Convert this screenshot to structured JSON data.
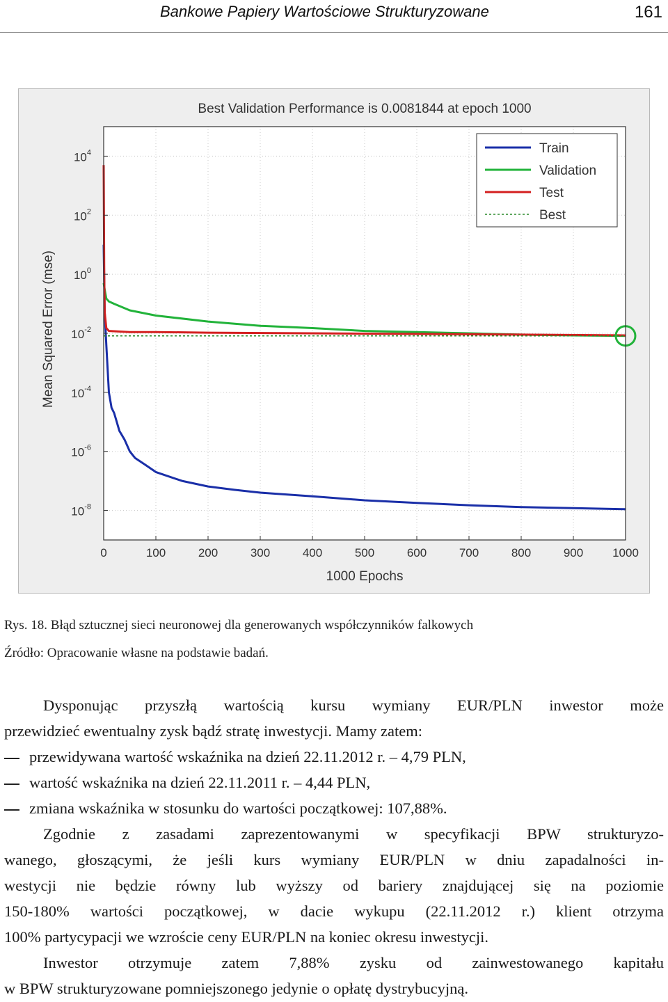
{
  "header": {
    "running_title": "Bankowe Papiery Wartościowe Strukturyzowane",
    "page_number": "161"
  },
  "figure": {
    "caption": "Rys. 18. Błąd sztucznej sieci neuronowej dla generowanych współczynników falkowych",
    "source": "Źródło:  Opracowanie własne na podstawie badań."
  },
  "chart_data": {
    "type": "line",
    "title": "Best Validation Performance is 0.0081844 at epoch 1000",
    "xlabel": "1000 Epochs",
    "ylabel": "Mean Squared Error  (mse)",
    "xlim": [
      0,
      1000
    ],
    "ylim_log10": [
      -9,
      5
    ],
    "y_scale": "log",
    "x_ticks": [
      "0",
      "100",
      "200",
      "300",
      "400",
      "500",
      "600",
      "700",
      "800",
      "900",
      "1000"
    ],
    "y_ticks": [
      {
        "base": "10",
        "exp": "4",
        "log10": 4
      },
      {
        "base": "10",
        "exp": "2",
        "log10": 2
      },
      {
        "base": "10",
        "exp": "0",
        "log10": 0
      },
      {
        "base": "10",
        "exp": "-2",
        "log10": -2
      },
      {
        "base": "10",
        "exp": "-4",
        "log10": -4
      },
      {
        "base": "10",
        "exp": "-6",
        "log10": -6
      },
      {
        "base": "10",
        "exp": "-8",
        "log10": -8
      }
    ],
    "grid": true,
    "legend_position": "top-right",
    "series": [
      {
        "name": "Train",
        "color": "#1a2fa8",
        "style": "solid",
        "x": [
          0,
          2,
          5,
          10,
          15,
          20,
          25,
          30,
          40,
          50,
          60,
          80,
          100,
          150,
          200,
          250,
          300,
          400,
          500,
          600,
          700,
          800,
          900,
          1000
        ],
        "y": [
          10,
          0.05,
          0.004,
          0.0001,
          3e-05,
          2e-05,
          1e-05,
          5e-06,
          2.5e-06,
          1e-06,
          6e-07,
          3.5e-07,
          2e-07,
          1e-07,
          6.5e-08,
          5e-08,
          4e-08,
          3e-08,
          2.2e-08,
          1.8e-08,
          1.5e-08,
          1.3e-08,
          1.2e-08,
          1.1e-08
        ]
      },
      {
        "name": "Validation",
        "color": "#22b33a",
        "style": "solid",
        "x": [
          0,
          2,
          5,
          10,
          20,
          50,
          100,
          200,
          300,
          400,
          500,
          600,
          700,
          800,
          900,
          1000
        ],
        "y": [
          0.5,
          0.3,
          0.15,
          0.12,
          0.1,
          0.06,
          0.04,
          0.025,
          0.018,
          0.015,
          0.012,
          0.011,
          0.01,
          0.009,
          0.0085,
          0.0081844
        ]
      },
      {
        "name": "Test",
        "color": "#d42020",
        "style": "solid",
        "x": [
          0,
          1,
          2,
          5,
          10,
          50,
          100,
          200,
          400,
          600,
          800,
          1000
        ],
        "y": [
          5000,
          1,
          0.05,
          0.015,
          0.012,
          0.011,
          0.011,
          0.0105,
          0.01,
          0.0095,
          0.009,
          0.0085
        ]
      },
      {
        "name": "Best",
        "color": "#2a8a2a",
        "style": "dotted",
        "x": [
          0,
          1000
        ],
        "y": [
          0.0081844,
          0.0081844
        ]
      }
    ],
    "best_marker": {
      "x": 1000,
      "y": 0.0081844,
      "color": "#22b33a"
    }
  },
  "paragraph1": {
    "line1": "Dysponując przyszłą wartością kursu wymiany EUR/PLN inwestor może",
    "line2": "przewidzieć ewentualny zysk bądź stratę  inwestycji. Mamy zatem:"
  },
  "list_items": [
    "przewidywana wartość wskaźnika na dzień 22.11.2012 r. – 4,79 PLN,",
    "wartość wskaźnika na dzień 22.11.2011 r. – 4,44 PLN,",
    "zmiana wskaźnika w stosunku do wartości początkowej: 107,88%."
  ],
  "paragraph2": {
    "line1": "Zgodnie z zasadami zaprezentowanymi w specyfikacji BPW strukturyzo-",
    "line2": "wanego, głoszącymi, że jeśli kurs wymiany EUR/PLN w dniu zapadalności in-",
    "line3": "westycji nie będzie równy lub wyższy od bariery znajdującej się na poziomie",
    "line4": "150-180% wartości początkowej, w dacie wykupu (22.11.2012 r.) klient otrzyma",
    "line5": "100% partycypacji we wzroście ceny EUR/PLN na koniec okresu inwestycji."
  },
  "paragraph3": {
    "line1": "Inwestor otrzymuje zatem 7,88% zysku od zainwestowanego kapitału",
    "line2": "w BPW strukturyzowane pomniejszonego jedynie o opłatę dystrybucyjną."
  }
}
